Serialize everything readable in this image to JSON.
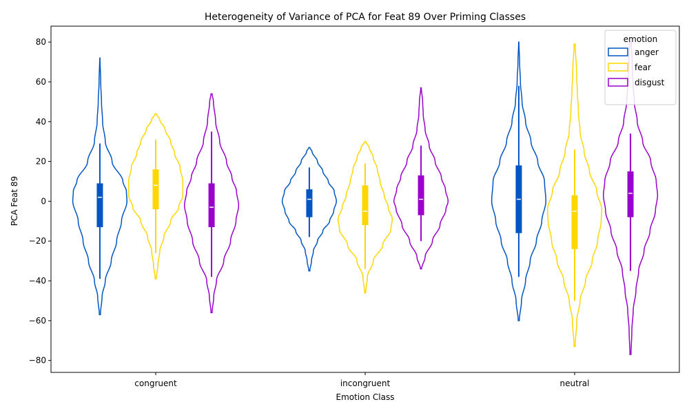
{
  "chart_data": {
    "type": "violin",
    "title": "Heterogeneity of Variance of PCA for Feat 89 Over Priming Classes",
    "xlabel": "Emotion Class",
    "ylabel": "PCA Feat 89",
    "categories": [
      "congruent",
      "incongruent",
      "neutral"
    ],
    "ylim": [
      -86,
      88
    ],
    "yticks": [
      -80,
      -60,
      -40,
      -20,
      0,
      20,
      40,
      60,
      80
    ],
    "legend": {
      "title": "emotion",
      "position": "top-right"
    },
    "series": [
      {
        "name": "anger",
        "color": "#0055c4",
        "violins": [
          {
            "min": -57,
            "max": 72,
            "whisker_low": -39,
            "whisker_high": 29,
            "q1": -13,
            "median": 2,
            "q3": 9,
            "profile": [
              [
                -57,
                0.02
              ],
              [
                -48,
                0.08
              ],
              [
                -40,
                0.2
              ],
              [
                -30,
                0.42
              ],
              [
                -20,
                0.62
              ],
              [
                -10,
                0.8
              ],
              [
                0,
                1.0
              ],
              [
                5,
                0.98
              ],
              [
                10,
                0.85
              ],
              [
                20,
                0.45
              ],
              [
                30,
                0.2
              ],
              [
                40,
                0.1
              ],
              [
                50,
                0.06
              ],
              [
                60,
                0.03
              ],
              [
                72,
                0.005
              ]
            ]
          },
          {
            "min": -35,
            "max": 27,
            "whisker_low": -18,
            "whisker_high": 17,
            "q1": -8,
            "median": 1,
            "q3": 6,
            "profile": [
              [
                -35,
                0.02
              ],
              [
                -30,
                0.08
              ],
              [
                -25,
                0.15
              ],
              [
                -20,
                0.3
              ],
              [
                -15,
                0.5
              ],
              [
                -10,
                0.75
              ],
              [
                -5,
                0.9
              ],
              [
                0,
                1.0
              ],
              [
                5,
                0.92
              ],
              [
                10,
                0.7
              ],
              [
                15,
                0.5
              ],
              [
                20,
                0.3
              ],
              [
                25,
                0.1
              ],
              [
                27,
                0.02
              ]
            ]
          },
          {
            "min": -60,
            "max": 80,
            "whisker_low": -38,
            "whisker_high": 58,
            "q1": -16,
            "median": 1,
            "q3": 18,
            "profile": [
              [
                -60,
                0.02
              ],
              [
                -50,
                0.1
              ],
              [
                -40,
                0.25
              ],
              [
                -30,
                0.42
              ],
              [
                -20,
                0.65
              ],
              [
                -10,
                0.85
              ],
              [
                0,
                1.0
              ],
              [
                10,
                0.95
              ],
              [
                20,
                0.7
              ],
              [
                30,
                0.45
              ],
              [
                40,
                0.25
              ],
              [
                50,
                0.12
              ],
              [
                60,
                0.06
              ],
              [
                70,
                0.03
              ],
              [
                80,
                0.005
              ]
            ]
          }
        ]
      },
      {
        "name": "fear",
        "color": "#ffd700",
        "violins": [
          {
            "min": -39,
            "max": 44,
            "whisker_low": -26,
            "whisker_high": 31,
            "q1": -4,
            "median": 8,
            "q3": 16,
            "profile": [
              [
                -39,
                0.02
              ],
              [
                -32,
                0.08
              ],
              [
                -25,
                0.15
              ],
              [
                -18,
                0.3
              ],
              [
                -10,
                0.55
              ],
              [
                -3,
                0.85
              ],
              [
                3,
                1.0
              ],
              [
                10,
                1.0
              ],
              [
                17,
                0.9
              ],
              [
                24,
                0.7
              ],
              [
                30,
                0.55
              ],
              [
                36,
                0.35
              ],
              [
                41,
                0.15
              ],
              [
                44,
                0.02
              ]
            ]
          },
          {
            "min": -46,
            "max": 30,
            "whisker_low": -34,
            "whisker_high": 19,
            "q1": -12,
            "median": -5,
            "q3": 8,
            "profile": [
              [
                -46,
                0.02
              ],
              [
                -38,
                0.08
              ],
              [
                -30,
                0.3
              ],
              [
                -22,
                0.65
              ],
              [
                -14,
                0.95
              ],
              [
                -9,
                1.0
              ],
              [
                -3,
                0.85
              ],
              [
                3,
                0.7
              ],
              [
                10,
                0.55
              ],
              [
                16,
                0.45
              ],
              [
                22,
                0.3
              ],
              [
                27,
                0.15
              ],
              [
                30,
                0.02
              ]
            ]
          },
          {
            "min": -73,
            "max": 79,
            "whisker_low": -50,
            "whisker_high": 26,
            "q1": -24,
            "median": -5,
            "q3": 3,
            "profile": [
              [
                -73,
                0.02
              ],
              [
                -60,
                0.08
              ],
              [
                -50,
                0.2
              ],
              [
                -40,
                0.4
              ],
              [
                -30,
                0.65
              ],
              [
                -20,
                0.85
              ],
              [
                -10,
                0.98
              ],
              [
                -4,
                1.0
              ],
              [
                5,
                0.82
              ],
              [
                15,
                0.55
              ],
              [
                25,
                0.35
              ],
              [
                35,
                0.2
              ],
              [
                45,
                0.14
              ],
              [
                55,
                0.1
              ],
              [
                65,
                0.07
              ],
              [
                79,
                0.02
              ]
            ]
          }
        ]
      },
      {
        "name": "disgust",
        "color": "#9900cc",
        "violins": [
          {
            "min": -56,
            "max": 54,
            "whisker_low": -38,
            "whisker_high": 35,
            "q1": -13,
            "median": -3,
            "q3": 9,
            "profile": [
              [
                -56,
                0.02
              ],
              [
                -48,
                0.08
              ],
              [
                -40,
                0.18
              ],
              [
                -30,
                0.45
              ],
              [
                -20,
                0.7
              ],
              [
                -10,
                0.9
              ],
              [
                -2,
                1.0
              ],
              [
                5,
                0.92
              ],
              [
                12,
                0.75
              ],
              [
                20,
                0.55
              ],
              [
                30,
                0.3
              ],
              [
                40,
                0.15
              ],
              [
                50,
                0.07
              ],
              [
                54,
                0.02
              ]
            ]
          },
          {
            "min": -34,
            "max": 57,
            "whisker_low": -20,
            "whisker_high": 28,
            "q1": -7,
            "median": 1,
            "q3": 13,
            "profile": [
              [
                -34,
                0.02
              ],
              [
                -28,
                0.15
              ],
              [
                -20,
                0.42
              ],
              [
                -12,
                0.7
              ],
              [
                -4,
                0.92
              ],
              [
                0,
                1.0
              ],
              [
                6,
                0.9
              ],
              [
                12,
                0.75
              ],
              [
                20,
                0.52
              ],
              [
                28,
                0.3
              ],
              [
                36,
                0.15
              ],
              [
                44,
                0.08
              ],
              [
                50,
                0.06
              ],
              [
                57,
                0.01
              ]
            ]
          },
          {
            "min": -77,
            "max": 80,
            "whisker_low": -35,
            "whisker_high": 34,
            "q1": -8,
            "median": 4,
            "q3": 15,
            "profile": [
              [
                -77,
                0.02
              ],
              [
                -65,
                0.05
              ],
              [
                -55,
                0.1
              ],
              [
                -45,
                0.2
              ],
              [
                -35,
                0.3
              ],
              [
                -25,
                0.5
              ],
              [
                -15,
                0.72
              ],
              [
                -5,
                0.92
              ],
              [
                3,
                1.0
              ],
              [
                10,
                0.95
              ],
              [
                20,
                0.75
              ],
              [
                30,
                0.45
              ],
              [
                40,
                0.25
              ],
              [
                50,
                0.14
              ],
              [
                60,
                0.09
              ],
              [
                70,
                0.06
              ],
              [
                80,
                0.03
              ]
            ]
          }
        ]
      }
    ]
  }
}
